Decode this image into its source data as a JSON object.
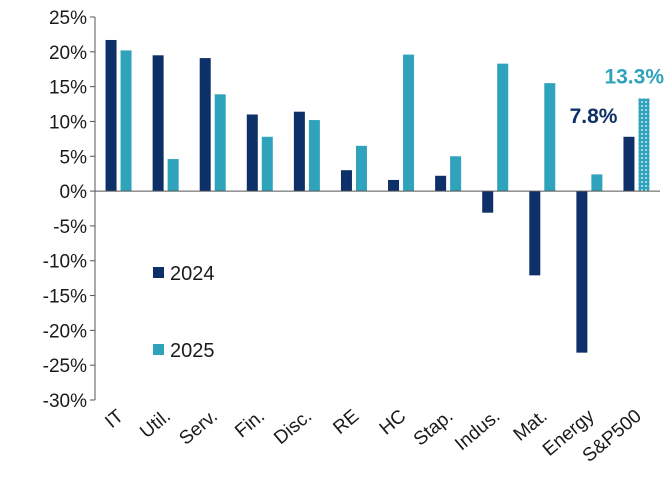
{
  "chart_data": {
    "type": "bar",
    "categories": [
      "IT",
      "Util.",
      "Serv.",
      "Fin.",
      "Disc.",
      "RE",
      "HC",
      "Stap.",
      "Indus.",
      "Mat.",
      "Energy",
      "S&P500"
    ],
    "series": [
      {
        "name": "2024",
        "color": "#0d3068",
        "values": [
          21.7,
          19.5,
          19.1,
          11.0,
          11.4,
          3.0,
          1.6,
          2.2,
          -3.1,
          -12.1,
          -23.2,
          7.8
        ]
      },
      {
        "name": "2025",
        "color": "#2fa3bb",
        "values": [
          20.2,
          4.6,
          13.9,
          7.8,
          10.2,
          6.5,
          19.6,
          5.0,
          18.3,
          15.5,
          2.4,
          13.3
        ]
      }
    ],
    "ylim": [
      -30,
      25
    ],
    "y_ticks": [
      "25%",
      "20%",
      "15%",
      "10%",
      "5%",
      "0%",
      "-5%",
      "-10%",
      "-15%",
      "-20%",
      "-25%",
      "-30%"
    ],
    "legend": {
      "placement": "left, inside plot",
      "entries": [
        "2024",
        "2025"
      ]
    },
    "annotations": [
      {
        "text": "13.3%",
        "color": "#2fa3bb",
        "category": "S&P500",
        "series": "2025"
      },
      {
        "text": "7.8%",
        "color": "#0d3068",
        "category": "S&P500",
        "series": "2024"
      }
    ],
    "highlight": {
      "category": "S&P500",
      "series": "2025",
      "pattern": "dotted"
    },
    "grid": false
  }
}
